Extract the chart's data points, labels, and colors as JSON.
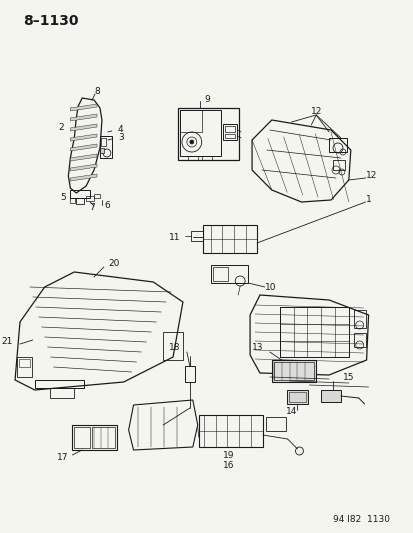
{
  "title": "8–1130",
  "footer": "94 I82  1130",
  "bg_color": "#f5f5f0",
  "line_color": "#1a1a1a",
  "text_color": "#1a1a1a",
  "title_fontsize": 10,
  "footer_fontsize": 6.5,
  "label_fontsize": 6.5
}
